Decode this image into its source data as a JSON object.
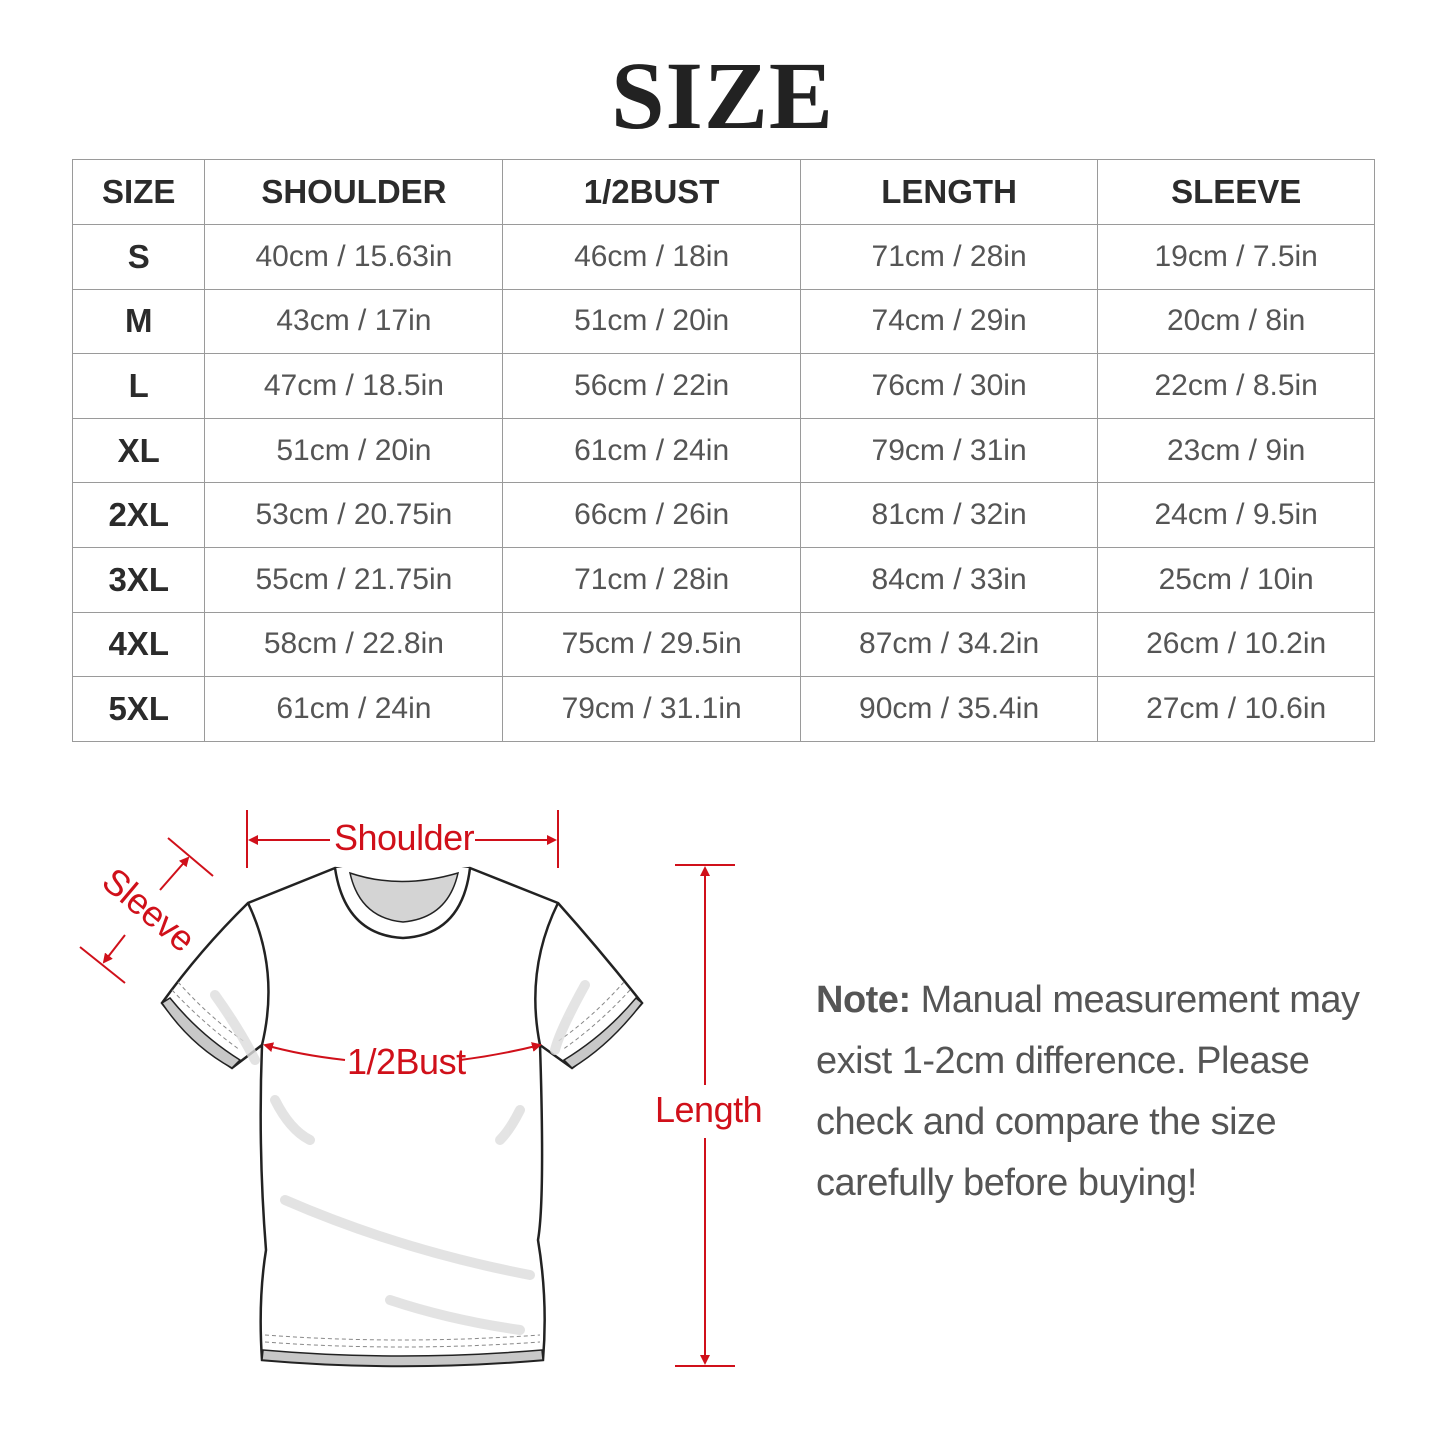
{
  "title": "SIZE",
  "table": {
    "headers": [
      "SIZE",
      "SHOULDER",
      "1/2BUST",
      "LENGTH",
      "SLEEVE"
    ],
    "rows": [
      [
        "S",
        "40cm / 15.63in",
        "46cm / 18in",
        "71cm / 28in",
        "19cm / 7.5in"
      ],
      [
        "M",
        "43cm / 17in",
        "51cm / 20in",
        "74cm / 29in",
        "20cm / 8in"
      ],
      [
        "L",
        "47cm / 18.5in",
        "56cm / 22in",
        "76cm / 30in",
        "22cm / 8.5in"
      ],
      [
        "XL",
        "51cm / 20in",
        "61cm / 24in",
        "79cm / 31in",
        "23cm / 9in"
      ],
      [
        "2XL",
        "53cm / 20.75in",
        "66cm / 26in",
        "81cm / 32in",
        "24cm / 9.5in"
      ],
      [
        "3XL",
        "55cm / 21.75in",
        "71cm / 28in",
        "84cm / 33in",
        "25cm / 10in"
      ],
      [
        "4XL",
        "58cm / 22.8in",
        "75cm / 29.5in",
        "87cm / 34.2in",
        "26cm / 10.2in"
      ],
      [
        "5XL",
        "61cm / 24in",
        "79cm / 31.1in",
        "90cm / 35.4in",
        "27cm / 10.6in"
      ]
    ]
  },
  "diagram": {
    "shoulder": "Shoulder",
    "sleeve": "Sleeve",
    "bust": "1/2Bust",
    "length": "Length",
    "accent_color": "#d0101a"
  },
  "note": {
    "label": "Note:",
    "text": " Manual measurement may exist 1-2cm difference. Please check and compare the size carefully before buying!"
  }
}
